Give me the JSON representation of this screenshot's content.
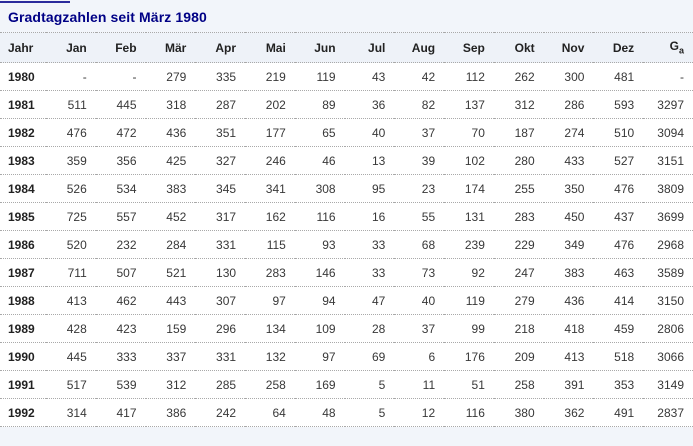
{
  "page": {
    "title": "Gradtagzahlen seit März 1980"
  },
  "colors": {
    "page_background": "#f2f5fa",
    "header_background": "#eef2f8",
    "row_background": "#ffffff",
    "title_text": "#000085",
    "header_text": "#222222",
    "value_text": "#383838",
    "dotted_border": "#a9a9a9",
    "top_accent": "#2b2b9c"
  },
  "table": {
    "columns": [
      {
        "label": "Jahr"
      },
      {
        "label": "Jan"
      },
      {
        "label": "Feb"
      },
      {
        "label": "Mär"
      },
      {
        "label": "Apr"
      },
      {
        "label": "Mai"
      },
      {
        "label": "Jun"
      },
      {
        "label": "Jul"
      },
      {
        "label": "Aug"
      },
      {
        "label": "Sep"
      },
      {
        "label": "Okt"
      },
      {
        "label": "Nov"
      },
      {
        "label": "Dez"
      },
      {
        "label": "G",
        "sub": "a"
      }
    ],
    "rows": [
      {
        "year": "1980",
        "values": [
          "-",
          "-",
          "279",
          "335",
          "219",
          "119",
          "43",
          "42",
          "112",
          "262",
          "300",
          "481",
          "-"
        ]
      },
      {
        "year": "1981",
        "values": [
          "511",
          "445",
          "318",
          "287",
          "202",
          "89",
          "36",
          "82",
          "137",
          "312",
          "286",
          "593",
          "3297"
        ]
      },
      {
        "year": "1982",
        "values": [
          "476",
          "472",
          "436",
          "351",
          "177",
          "65",
          "40",
          "37",
          "70",
          "187",
          "274",
          "510",
          "3094"
        ]
      },
      {
        "year": "1983",
        "values": [
          "359",
          "356",
          "425",
          "327",
          "246",
          "46",
          "13",
          "39",
          "102",
          "280",
          "433",
          "527",
          "3151"
        ]
      },
      {
        "year": "1984",
        "values": [
          "526",
          "534",
          "383",
          "345",
          "341",
          "308",
          "95",
          "23",
          "174",
          "255",
          "350",
          "476",
          "3809"
        ]
      },
      {
        "year": "1985",
        "values": [
          "725",
          "557",
          "452",
          "317",
          "162",
          "116",
          "16",
          "55",
          "131",
          "283",
          "450",
          "437",
          "3699"
        ]
      },
      {
        "year": "1986",
        "values": [
          "520",
          "232",
          "284",
          "331",
          "115",
          "93",
          "33",
          "68",
          "239",
          "229",
          "349",
          "476",
          "2968"
        ]
      },
      {
        "year": "1987",
        "values": [
          "711",
          "507",
          "521",
          "130",
          "283",
          "146",
          "33",
          "73",
          "92",
          "247",
          "383",
          "463",
          "3589"
        ]
      },
      {
        "year": "1988",
        "values": [
          "413",
          "462",
          "443",
          "307",
          "97",
          "94",
          "47",
          "40",
          "119",
          "279",
          "436",
          "414",
          "3150"
        ]
      },
      {
        "year": "1989",
        "values": [
          "428",
          "423",
          "159",
          "296",
          "134",
          "109",
          "28",
          "37",
          "99",
          "218",
          "418",
          "459",
          "2806"
        ]
      },
      {
        "year": "1990",
        "values": [
          "445",
          "333",
          "337",
          "331",
          "132",
          "97",
          "69",
          "6",
          "176",
          "209",
          "413",
          "518",
          "3066"
        ]
      },
      {
        "year": "1991",
        "values": [
          "517",
          "539",
          "312",
          "285",
          "258",
          "169",
          "5",
          "11",
          "51",
          "258",
          "391",
          "353",
          "3149"
        ]
      },
      {
        "year": "1992",
        "values": [
          "314",
          "417",
          "386",
          "242",
          "64",
          "48",
          "5",
          "12",
          "116",
          "380",
          "362",
          "491",
          "2837"
        ]
      }
    ]
  }
}
